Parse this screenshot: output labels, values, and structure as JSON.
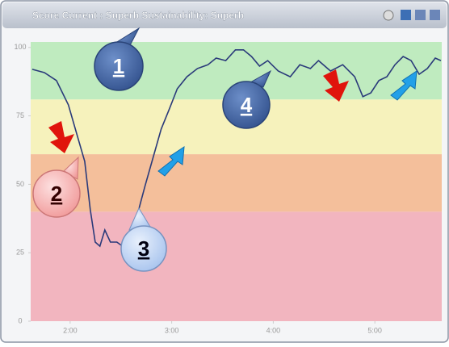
{
  "chart_data": {
    "type": "line",
    "title": "Score Current : Superb   Sustainability: Superb",
    "x": [
      97.6,
      104.8,
      111.9,
      119.0,
      125.2,
      128.6,
      131.9,
      134.8,
      137.6,
      140.5,
      143.8,
      147.6,
      151.0,
      154.8,
      157.1,
      160.5,
      164.3,
      169.0,
      173.8,
      178.6,
      183.3,
      189.0,
      195.2,
      201.4,
      206.2,
      211.9,
      217.6,
      222.4,
      227.1,
      231.9,
      236.7,
      242.9,
      250.0,
      255.7,
      261.9,
      266.7,
      273.8,
      281.0,
      288.1,
      292.9,
      297.6,
      302.4,
      307.1,
      311.9,
      316.7,
      321.4,
      326.2,
      331.0,
      335.7,
      339.0
    ],
    "series": [
      {
        "color": "#2a3a7a",
        "values": [
          92.0,
          90.8,
          87.9,
          79.0,
          65.7,
          58.4,
          40.7,
          28.9,
          27.4,
          33.3,
          28.9,
          28.9,
          27.4,
          25.9,
          28.9,
          40.7,
          49.5,
          59.8,
          70.2,
          77.5,
          84.9,
          89.3,
          92.3,
          93.7,
          96.1,
          95.2,
          99.1,
          99.1,
          96.7,
          93.2,
          95.2,
          91.4,
          89.3,
          93.7,
          92.3,
          95.2,
          91.4,
          93.7,
          89.3,
          82.0,
          83.4,
          87.9,
          89.3,
          93.7,
          96.7,
          95.2,
          90.2,
          92.3,
          96.1,
          95.2
        ]
      }
    ],
    "xlim": [
      96.7,
      339.5
    ],
    "xticks": [
      {
        "value": 120,
        "label": "2:00"
      },
      {
        "value": 180,
        "label": "3:00"
      },
      {
        "value": 240,
        "label": "4:00"
      },
      {
        "value": 300,
        "label": "5:00"
      }
    ],
    "ylim": [
      0,
      102
    ],
    "yticks": [
      0,
      25,
      50,
      75,
      100
    ],
    "bands": [
      {
        "from": 0,
        "to": 40,
        "color": "#f0a8b4"
      },
      {
        "from": 40,
        "to": 61,
        "color": "#f2b48a"
      },
      {
        "from": 61,
        "to": 81,
        "color": "#f4f0b0"
      },
      {
        "from": 81,
        "to": 102,
        "color": "#b4e8b4"
      }
    ],
    "annotations": [
      {
        "label": "1"
      },
      {
        "label": "2"
      },
      {
        "label": "3"
      },
      {
        "label": "4"
      }
    ]
  }
}
